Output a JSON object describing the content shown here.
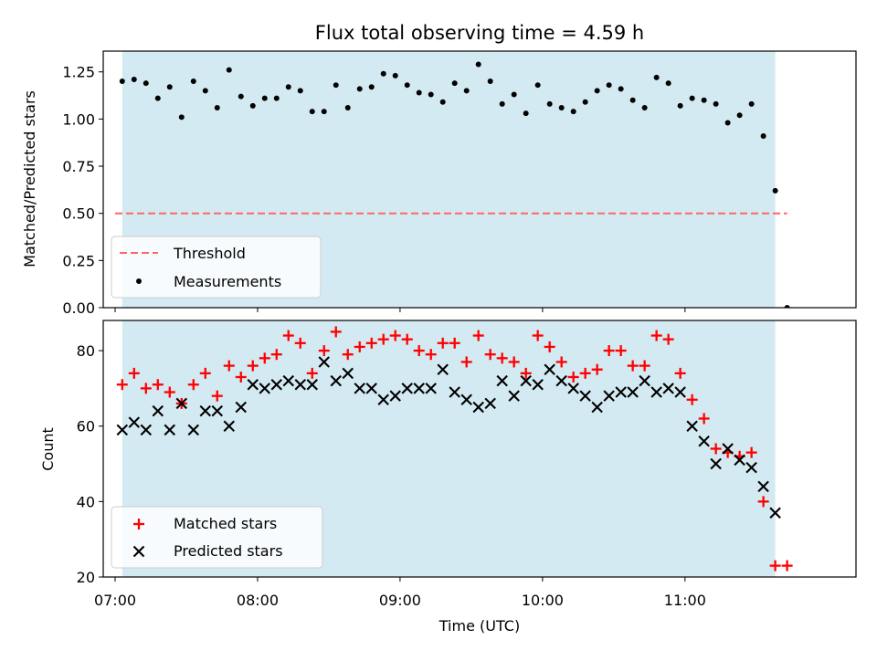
{
  "chart_data": [
    {
      "type": "scatter",
      "title": "Flux total observing time = 4.59 h",
      "xlabel": "",
      "ylabel": "Matched/Predicted stars",
      "ylim": [
        0,
        1.36
      ],
      "yticks": [
        "0.00",
        "0.25",
        "0.50",
        "0.75",
        "1.00",
        "1.25"
      ],
      "ytick_values": [
        0,
        0.25,
        0.5,
        0.75,
        1.0,
        1.25
      ],
      "observing_window": [
        "07:03",
        "11:38"
      ],
      "observing_window_color": "#add8e6",
      "threshold": {
        "name": "Threshold",
        "value": 0.5,
        "x_start": "07:00",
        "x_end": "11:43",
        "color": "#ff6666"
      },
      "series": [
        {
          "name": "Measurements",
          "color": "#000000",
          "x": [
            "07:03",
            "07:08",
            "07:13",
            "07:18",
            "07:23",
            "07:28",
            "07:33",
            "07:38",
            "07:43",
            "07:48",
            "07:53",
            "07:58",
            "08:03",
            "08:08",
            "08:13",
            "08:18",
            "08:23",
            "08:28",
            "08:33",
            "08:38",
            "08:43",
            "08:48",
            "08:53",
            "08:58",
            "09:03",
            "09:08",
            "09:13",
            "09:18",
            "09:23",
            "09:28",
            "09:33",
            "09:38",
            "09:43",
            "09:48",
            "09:53",
            "09:58",
            "10:03",
            "10:08",
            "10:13",
            "10:18",
            "10:23",
            "10:28",
            "10:33",
            "10:38",
            "10:43",
            "10:48",
            "10:53",
            "10:58",
            "11:03",
            "11:08",
            "11:13",
            "11:18",
            "11:23",
            "11:28",
            "11:33",
            "11:38",
            "11:43"
          ],
          "values": [
            1.2,
            1.21,
            1.19,
            1.11,
            1.17,
            1.01,
            1.2,
            1.15,
            1.06,
            1.26,
            1.12,
            1.07,
            1.11,
            1.11,
            1.17,
            1.15,
            1.04,
            1.04,
            1.18,
            1.06,
            1.16,
            1.17,
            1.24,
            1.23,
            1.18,
            1.14,
            1.13,
            1.09,
            1.19,
            1.15,
            1.29,
            1.2,
            1.08,
            1.13,
            1.03,
            1.18,
            1.08,
            1.06,
            1.04,
            1.09,
            1.15,
            1.18,
            1.16,
            1.1,
            1.06,
            1.22,
            1.19,
            1.07,
            1.11,
            1.1,
            1.08,
            0.98,
            1.02,
            1.08,
            0.91,
            0.62,
            0.0
          ]
        }
      ],
      "legend": {
        "position": "lower-left",
        "entries": [
          "Threshold",
          "Measurements"
        ]
      }
    },
    {
      "type": "scatter",
      "title": "",
      "xlabel": "Time (UTC)",
      "ylabel": "Count",
      "ylim": [
        20,
        88
      ],
      "yticks": [
        "20",
        "40",
        "60",
        "80"
      ],
      "ytick_values": [
        20,
        40,
        60,
        80
      ],
      "xlim": [
        "06:55",
        "12:12"
      ],
      "xticks": [
        "07:00",
        "08:00",
        "09:00",
        "10:00",
        "11:00"
      ],
      "series": [
        {
          "name": "Matched stars",
          "marker": "plus",
          "color": "#ff0000",
          "x": [
            "07:03",
            "07:08",
            "07:13",
            "07:18",
            "07:23",
            "07:28",
            "07:33",
            "07:38",
            "07:43",
            "07:48",
            "07:53",
            "07:58",
            "08:03",
            "08:08",
            "08:13",
            "08:18",
            "08:23",
            "08:28",
            "08:33",
            "08:38",
            "08:43",
            "08:48",
            "08:53",
            "08:58",
            "09:03",
            "09:08",
            "09:13",
            "09:18",
            "09:23",
            "09:28",
            "09:33",
            "09:38",
            "09:43",
            "09:48",
            "09:53",
            "09:58",
            "10:03",
            "10:08",
            "10:13",
            "10:18",
            "10:23",
            "10:28",
            "10:33",
            "10:38",
            "10:43",
            "10:48",
            "10:53",
            "10:58",
            "11:03",
            "11:08",
            "11:13",
            "11:18",
            "11:23",
            "11:28",
            "11:33",
            "11:38",
            "11:43"
          ],
          "values": [
            71,
            74,
            70,
            71,
            69,
            66,
            71,
            74,
            68,
            76,
            73,
            76,
            78,
            79,
            84,
            82,
            74,
            80,
            85,
            79,
            81,
            82,
            83,
            84,
            83,
            80,
            79,
            82,
            82,
            77,
            84,
            79,
            78,
            77,
            74,
            84,
            81,
            77,
            73,
            74,
            75,
            80,
            80,
            76,
            76,
            84,
            83,
            74,
            67,
            62,
            54,
            53,
            52,
            53,
            40,
            23,
            23
          ]
        },
        {
          "name": "Predicted stars",
          "marker": "x",
          "color": "#000000",
          "x": [
            "07:03",
            "07:08",
            "07:13",
            "07:18",
            "07:23",
            "07:28",
            "07:33",
            "07:38",
            "07:43",
            "07:48",
            "07:53",
            "07:58",
            "08:03",
            "08:08",
            "08:13",
            "08:18",
            "08:23",
            "08:28",
            "08:33",
            "08:38",
            "08:43",
            "08:48",
            "08:53",
            "08:58",
            "09:03",
            "09:08",
            "09:13",
            "09:18",
            "09:23",
            "09:28",
            "09:33",
            "09:38",
            "09:43",
            "09:48",
            "09:53",
            "09:58",
            "10:03",
            "10:08",
            "10:13",
            "10:18",
            "10:23",
            "10:28",
            "10:33",
            "10:38",
            "10:43",
            "10:48",
            "10:53",
            "10:58",
            "11:03",
            "11:08",
            "11:13",
            "11:18",
            "11:23",
            "11:28",
            "11:33",
            "11:38"
          ],
          "values": [
            59,
            61,
            59,
            64,
            59,
            66,
            59,
            64,
            64,
            60,
            65,
            71,
            70,
            71,
            72,
            71,
            71,
            77,
            72,
            74,
            70,
            70,
            67,
            68,
            70,
            70,
            70,
            75,
            69,
            67,
            65,
            66,
            72,
            68,
            72,
            71,
            75,
            72,
            70,
            68,
            65,
            68,
            69,
            69,
            72,
            69,
            70,
            69,
            60,
            56,
            50,
            54,
            51,
            49,
            44,
            37
          ]
        }
      ],
      "legend": {
        "position": "lower-left",
        "entries": [
          "Matched stars",
          "Predicted stars"
        ]
      }
    }
  ]
}
